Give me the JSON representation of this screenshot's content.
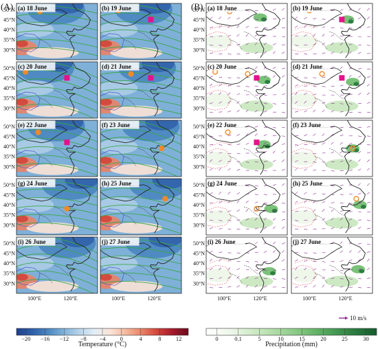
{
  "figure": {
    "colors": {
      "temp_scale": [
        "#1f3f8c",
        "#2e5fa8",
        "#4a86c0",
        "#7fb0d8",
        "#b6d3ea",
        "#e3eef7",
        "#fbe3d6",
        "#f5b99f",
        "#e98367",
        "#d2453a",
        "#a6182b",
        "#6b0c1e"
      ],
      "precip_scale": [
        "#ffffff",
        "#eef7ea",
        "#cde9c4",
        "#a8d8a0",
        "#7cc27a",
        "#4fa45a",
        "#2e7f42",
        "#155c2e"
      ],
      "contour_green": "#3aa84a",
      "contour_blue": "#4a55c8",
      "contour_red": "#e2707a",
      "wind_purple": "#8a2d8e",
      "marker_orange": "#ee8a2a",
      "marker_magenta": "#e3138b",
      "boundary": "#222222"
    }
  },
  "chart_data": [
    {
      "type": "heatmap",
      "title": "(A)",
      "field": "temperature",
      "colorbar_label": "Temperature (°C)",
      "colorbar_ticks": [
        "−20",
        "−16",
        "−12",
        "−8",
        "−4",
        "0",
        "4",
        "8",
        "12"
      ],
      "colorbar_range": [
        -22,
        14
      ],
      "x_tick_labels": [
        "100°E",
        "120°E"
      ],
      "y_tick_labels": [
        "50°N",
        "45°N",
        "40°N",
        "35°N",
        "30°N"
      ],
      "xlim": [
        90,
        135
      ],
      "ylim": [
        25,
        53
      ],
      "panels": [
        {
          "label": "(a) 18 June",
          "circle": [
            103,
            49
          ]
        },
        {
          "label": "(b) 19 June",
          "circle": [
            100,
            49.5
          ],
          "square": [
            118,
            45
          ]
        },
        {
          "label": "(c) 20 June",
          "circle": [
            95,
            48
          ],
          "square": [
            118,
            45
          ]
        },
        {
          "label": "(d) 21 June",
          "circle": [
            107,
            47
          ],
          "square": [
            118,
            45
          ]
        },
        {
          "label": "(e) 22 June",
          "circle": [
            102,
            47
          ],
          "square": [
            118,
            42
          ]
        },
        {
          "label": "(f) 23 June",
          "circle": [
            124,
            39
          ]
        },
        {
          "label": "(g) 24 June",
          "circle": [
            118,
            38
          ]
        },
        {
          "label": "(h) 25 June",
          "circle": [
            126,
            43
          ]
        },
        {
          "label": "(i) 26 June"
        },
        {
          "label": "(j) 27 June"
        }
      ]
    },
    {
      "type": "heatmap",
      "title": "(B)",
      "field": "precipitation",
      "colorbar_label": "Precipitation (mm)",
      "colorbar_ticks": [
        "0",
        "0.1",
        "5",
        "10",
        "15",
        "20",
        "25",
        "30"
      ],
      "colorbar_range": [
        0,
        35
      ],
      "wind_reference": "10 m/s",
      "x_tick_labels": [
        "100°E",
        "120°E"
      ],
      "y_tick_labels": [
        "50°N",
        "45°N",
        "40°N",
        "35°N",
        "30°N"
      ],
      "xlim": [
        90,
        135
      ],
      "ylim": [
        25,
        53
      ],
      "panels": [
        {
          "label": "(a) 18 June",
          "circle": [
            103,
            49
          ]
        },
        {
          "label": "(b) 19 June",
          "circle": [
            100,
            49.5
          ],
          "square": [
            118,
            45
          ]
        },
        {
          "label": "(c) 20 June",
          "circle": [
            95,
            48
          ],
          "circle2": [
            113,
            47
          ],
          "square": [
            118,
            45
          ]
        },
        {
          "label": "(d) 21 June",
          "circle": [
            107,
            47
          ],
          "square": [
            118,
            45
          ]
        },
        {
          "label": "(e) 22 June",
          "circle": [
            102,
            47
          ],
          "square": [
            118,
            42
          ]
        },
        {
          "label": "(f) 23 June",
          "circle": [
            124,
            39
          ]
        },
        {
          "label": "(g) 24 June",
          "circle": [
            118,
            38
          ]
        },
        {
          "label": "(h) 25 June",
          "circle": [
            126,
            43
          ]
        },
        {
          "label": "(i) 26 June"
        },
        {
          "label": "(j) 27 June"
        }
      ]
    }
  ]
}
